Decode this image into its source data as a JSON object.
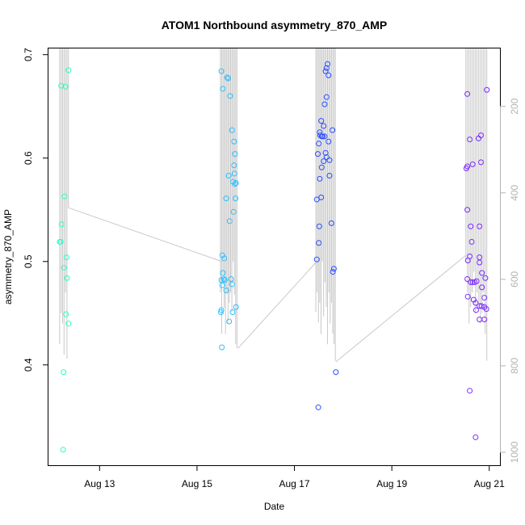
{
  "chart_data": {
    "type": "scatter",
    "title": "ATOM1 Northbound asymmetry_870_AMP",
    "xlabel": "Date",
    "ylabel": "asymmetry_870_AMP",
    "x_ticks": [
      {
        "day": 13,
        "label": "Aug 13"
      },
      {
        "day": 15,
        "label": "Aug 15"
      },
      {
        "day": 17,
        "label": "Aug 17"
      },
      {
        "day": 19,
        "label": "Aug 19"
      },
      {
        "day": 21,
        "label": "Aug 21"
      }
    ],
    "y_ticks": [
      {
        "value": 0.4,
        "label": "0.4"
      },
      {
        "value": 0.5,
        "label": "0.5"
      },
      {
        "value": 0.6,
        "label": "0.6"
      },
      {
        "value": 0.7,
        "label": "0.7"
      }
    ],
    "y2_ticks": [
      {
        "value": 200,
        "label": "200"
      },
      {
        "value": 400,
        "label": "400"
      },
      {
        "value": 600,
        "label": "600"
      },
      {
        "value": 800,
        "label": "800"
      },
      {
        "value": 1000,
        "label": "1000"
      }
    ],
    "xlim_days": [
      11.95,
      21.22
    ],
    "ylim": [
      0.303,
      0.706
    ],
    "y2lim": [
      1030,
      66
    ],
    "grid": false,
    "series": [
      {
        "color": "#2bffc6",
        "points": [
          [
            12.2,
            0.519
          ],
          [
            12.18,
            0.519
          ],
          [
            12.22,
            0.536
          ],
          [
            12.21,
            0.67
          ],
          [
            12.3,
            0.669
          ],
          [
            12.36,
            0.685
          ],
          [
            12.28,
            0.563
          ],
          [
            12.32,
            0.504
          ],
          [
            12.27,
            0.494
          ],
          [
            12.33,
            0.484
          ],
          [
            12.31,
            0.449
          ],
          [
            12.36,
            0.44
          ],
          [
            12.26,
            0.393
          ],
          [
            12.25,
            0.318
          ]
        ]
      },
      {
        "color": "#2bbfff",
        "points": [
          [
            15.5,
            0.684
          ],
          [
            15.53,
            0.667
          ],
          [
            15.62,
            0.678
          ],
          [
            15.64,
            0.677
          ],
          [
            15.68,
            0.66
          ],
          [
            15.72,
            0.627
          ],
          [
            15.76,
            0.616
          ],
          [
            15.78,
            0.604
          ],
          [
            15.76,
            0.593
          ],
          [
            15.65,
            0.583
          ],
          [
            15.77,
            0.585
          ],
          [
            15.74,
            0.577
          ],
          [
            15.8,
            0.576
          ],
          [
            15.78,
            0.575
          ],
          [
            15.6,
            0.561
          ],
          [
            15.79,
            0.561
          ],
          [
            15.75,
            0.548
          ],
          [
            15.67,
            0.539
          ],
          [
            15.52,
            0.506
          ],
          [
            15.56,
            0.503
          ],
          [
            15.53,
            0.489
          ],
          [
            15.5,
            0.482
          ],
          [
            15.55,
            0.483
          ],
          [
            15.57,
            0.482
          ],
          [
            15.7,
            0.483
          ],
          [
            15.72,
            0.478
          ],
          [
            15.52,
            0.477
          ],
          [
            15.6,
            0.472
          ],
          [
            15.5,
            0.453
          ],
          [
            15.49,
            0.451
          ],
          [
            15.73,
            0.451
          ],
          [
            15.8,
            0.456
          ],
          [
            15.66,
            0.442
          ],
          [
            15.51,
            0.417
          ]
        ]
      },
      {
        "color": "#2b4fff",
        "points": [
          [
            17.68,
            0.691
          ],
          [
            17.66,
            0.687
          ],
          [
            17.64,
            0.684
          ],
          [
            17.7,
            0.68
          ],
          [
            17.66,
            0.659
          ],
          [
            17.62,
            0.652
          ],
          [
            17.55,
            0.636
          ],
          [
            17.6,
            0.631
          ],
          [
            17.78,
            0.627
          ],
          [
            17.52,
            0.625
          ],
          [
            17.53,
            0.622
          ],
          [
            17.56,
            0.621
          ],
          [
            17.58,
            0.621
          ],
          [
            17.62,
            0.621
          ],
          [
            17.5,
            0.614
          ],
          [
            17.7,
            0.616
          ],
          [
            17.48,
            0.604
          ],
          [
            17.64,
            0.605
          ],
          [
            17.66,
            0.601
          ],
          [
            17.72,
            0.598
          ],
          [
            17.6,
            0.597
          ],
          [
            17.56,
            0.591
          ],
          [
            17.72,
            0.583
          ],
          [
            17.52,
            0.58
          ],
          [
            17.46,
            0.56
          ],
          [
            17.55,
            0.562
          ],
          [
            17.76,
            0.537
          ],
          [
            17.51,
            0.534
          ],
          [
            17.5,
            0.518
          ],
          [
            17.46,
            0.502
          ],
          [
            17.81,
            0.493
          ],
          [
            17.79,
            0.49
          ],
          [
            17.85,
            0.393
          ],
          [
            17.49,
            0.359
          ]
        ]
      },
      {
        "color": "#7c2bff",
        "points": [
          [
            20.55,
            0.662
          ],
          [
            20.95,
            0.666
          ],
          [
            20.83,
            0.622
          ],
          [
            20.78,
            0.619
          ],
          [
            20.6,
            0.618
          ],
          [
            20.55,
            0.592
          ],
          [
            20.66,
            0.594
          ],
          [
            20.83,
            0.596
          ],
          [
            20.53,
            0.59
          ],
          [
            20.55,
            0.55
          ],
          [
            20.62,
            0.534
          ],
          [
            20.8,
            0.534
          ],
          [
            20.64,
            0.519
          ],
          [
            20.56,
            0.501
          ],
          [
            20.6,
            0.505
          ],
          [
            20.8,
            0.504
          ],
          [
            20.8,
            0.499
          ],
          [
            20.85,
            0.489
          ],
          [
            20.55,
            0.483
          ],
          [
            20.62,
            0.48
          ],
          [
            20.66,
            0.48
          ],
          [
            20.7,
            0.48
          ],
          [
            20.74,
            0.481
          ],
          [
            20.92,
            0.484
          ],
          [
            20.85,
            0.475
          ],
          [
            20.56,
            0.466
          ],
          [
            20.68,
            0.463
          ],
          [
            20.9,
            0.465
          ],
          [
            20.72,
            0.46
          ],
          [
            20.8,
            0.457
          ],
          [
            20.84,
            0.457
          ],
          [
            20.9,
            0.456
          ],
          [
            20.94,
            0.454
          ],
          [
            20.73,
            0.453
          ],
          [
            20.8,
            0.444
          ],
          [
            20.9,
            0.444
          ],
          [
            20.6,
            0.375
          ],
          [
            20.72,
            0.33
          ]
        ]
      }
    ],
    "line_data": {
      "color": "#c8c8c8",
      "segments": [
        [
          [
            12.36,
            0.552
          ],
          [
            15.51,
            0.5
          ]
        ],
        [
          [
            15.84,
            0.416
          ],
          [
            17.46,
            0.5
          ]
        ],
        [
          [
            17.85,
            0.403
          ],
          [
            20.52,
            0.506
          ]
        ]
      ],
      "spike_groups": [
        {
          "x_start": 12.18,
          "x_end": 12.36,
          "lines": 7,
          "top": 0.706,
          "bottoms": [
            0.42,
            0.45,
            0.44,
            0.41,
            0.47,
            0.406,
            0.552
          ]
        },
        {
          "x_start": 15.48,
          "x_end": 15.82,
          "lines": 14,
          "top": 0.706,
          "bottoms": [
            0.47,
            0.43,
            0.488,
            0.455,
            0.43,
            0.47,
            0.441,
            0.46,
            0.47,
            0.451,
            0.5,
            0.468,
            0.42,
            0.416
          ]
        },
        {
          "x_start": 17.44,
          "x_end": 17.84,
          "lines": 16,
          "top": 0.706,
          "bottoms": [
            0.451,
            0.47,
            0.441,
            0.46,
            0.43,
            0.5,
            0.447,
            0.48,
            0.456,
            0.42,
            0.47,
            0.44,
            0.46,
            0.43,
            0.42,
            0.404
          ]
        },
        {
          "x_start": 20.52,
          "x_end": 20.95,
          "lines": 14,
          "top": 0.706,
          "bottoms": [
            0.5,
            0.47,
            0.44,
            0.456,
            0.47,
            0.49,
            0.45,
            0.47,
            0.46,
            0.44,
            0.45,
            0.47,
            0.43,
            0.404
          ]
        }
      ]
    }
  }
}
